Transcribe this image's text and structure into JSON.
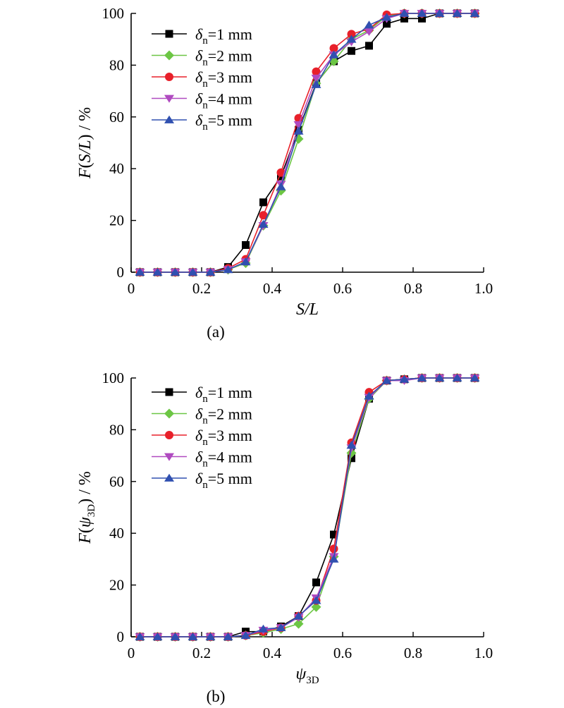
{
  "chart_data": [
    {
      "type": "line",
      "panel_label": "(a)",
      "xlabel": {
        "pre": "",
        "italic": "S/L",
        "post": ""
      },
      "ylabel": {
        "pre": "",
        "italic": "F",
        "mid": "(",
        "italic2": "S/L",
        "post": ") / %"
      },
      "xlim": [
        0,
        1.0
      ],
      "ylim": [
        0,
        100
      ],
      "xticks": [
        0,
        0.2,
        0.4,
        0.6,
        0.8,
        1.0
      ],
      "xtick_labels": [
        "0",
        "0.2",
        "0.4",
        "0.6",
        "0.8",
        "1.0"
      ],
      "yticks": [
        0,
        20,
        40,
        60,
        80,
        100
      ],
      "ytick_labels": [
        "0",
        "20",
        "40",
        "60",
        "80",
        "100"
      ],
      "legend_position": "top-left",
      "x": [
        0.025,
        0.075,
        0.125,
        0.175,
        0.225,
        0.275,
        0.325,
        0.375,
        0.425,
        0.475,
        0.525,
        0.575,
        0.625,
        0.675,
        0.725,
        0.775,
        0.825,
        0.875,
        0.925,
        0.975
      ],
      "series": [
        {
          "name": "=1 mm",
          "symbol": "δ",
          "sub": "n",
          "color": "#000000",
          "marker": "square",
          "values": [
            0,
            0,
            0,
            0,
            0,
            2,
            10.5,
            27,
            37,
            55,
            73,
            81.5,
            85.5,
            87.5,
            96,
            98,
            98,
            100,
            100,
            100
          ]
        },
        {
          "name": "=2 mm",
          "symbol": "δ",
          "sub": "n",
          "color": "#6cc644",
          "marker": "diamond",
          "values": [
            0,
            0,
            0,
            0,
            0,
            1,
            3.5,
            18,
            31.5,
            51.5,
            73,
            81.5,
            90,
            93.5,
            99,
            100,
            100,
            100,
            100,
            100
          ]
        },
        {
          "name": "=3 mm",
          "symbol": "δ",
          "sub": "n",
          "color": "#e8202a",
          "marker": "circle",
          "values": [
            0,
            0,
            0,
            0,
            0,
            1.5,
            5,
            22,
            38.5,
            59.5,
            77.5,
            86.5,
            92,
            94,
            99.5,
            100,
            100,
            100,
            100,
            100
          ]
        },
        {
          "name": "=4 mm",
          "symbol": "δ",
          "sub": "n",
          "color": "#b04ac0",
          "marker": "triangle-down",
          "values": [
            0,
            0,
            0,
            0,
            0,
            1,
            4,
            18,
            34,
            57,
            75,
            84,
            89,
            93,
            98,
            100,
            100,
            100,
            100,
            100
          ]
        },
        {
          "name": "=5 mm",
          "symbol": "δ",
          "sub": "n",
          "color": "#3050b0",
          "marker": "triangle-up",
          "values": [
            0,
            0,
            0,
            0,
            0,
            1,
            4,
            18.5,
            33,
            54.5,
            72.5,
            84,
            90,
            95.5,
            98.5,
            100,
            100,
            100,
            100,
            100
          ]
        }
      ]
    },
    {
      "type": "line",
      "panel_label": "(b)",
      "xlabel": {
        "pre": "",
        "italic": "ψ",
        "sub": "3D",
        "post": ""
      },
      "ylabel": {
        "pre": "",
        "italic": "F",
        "mid": "(",
        "italic2": "ψ",
        "sub": "3D",
        "post": ") / %"
      },
      "xlim": [
        0,
        1.0
      ],
      "ylim": [
        0,
        100
      ],
      "xticks": [
        0,
        0.2,
        0.4,
        0.6,
        0.8,
        1.0
      ],
      "xtick_labels": [
        "0",
        "0.2",
        "0.4",
        "0.6",
        "0.8",
        "1.0"
      ],
      "yticks": [
        0,
        20,
        40,
        60,
        80,
        100
      ],
      "ytick_labels": [
        "0",
        "20",
        "40",
        "60",
        "80",
        "100"
      ],
      "legend_position": "top-left",
      "x": [
        0.025,
        0.075,
        0.125,
        0.175,
        0.225,
        0.275,
        0.325,
        0.375,
        0.425,
        0.475,
        0.525,
        0.575,
        0.625,
        0.675,
        0.725,
        0.775,
        0.825,
        0.875,
        0.925,
        0.975
      ],
      "series": [
        {
          "name": "=1 mm",
          "symbol": "δ",
          "sub": "n",
          "color": "#000000",
          "marker": "square",
          "values": [
            0,
            0,
            0,
            0,
            0,
            0,
            2,
            2,
            4,
            8,
            21,
            39.5,
            69,
            92,
            99,
            99.5,
            100,
            100,
            100,
            100
          ]
        },
        {
          "name": "=2 mm",
          "symbol": "δ",
          "sub": "n",
          "color": "#6cc644",
          "marker": "diamond",
          "values": [
            0,
            0,
            0,
            0,
            0,
            0,
            0.5,
            1.5,
            3,
            5,
            11.5,
            31,
            71,
            92,
            99,
            99.5,
            100,
            100,
            100,
            100
          ]
        },
        {
          "name": "=3 mm",
          "symbol": "δ",
          "sub": "n",
          "color": "#e8202a",
          "marker": "circle",
          "values": [
            0,
            0,
            0,
            0,
            0,
            0,
            0.5,
            2,
            3.5,
            8,
            14,
            34,
            75,
            94.5,
            99,
            99.5,
            100,
            100,
            100,
            100
          ]
        },
        {
          "name": "=4 mm",
          "symbol": "δ",
          "sub": "n",
          "color": "#b04ac0",
          "marker": "triangle-down",
          "values": [
            0,
            0,
            0,
            0,
            0,
            0,
            0.5,
            2.5,
            3.5,
            7.5,
            15,
            31,
            73,
            92.5,
            99,
            99,
            100,
            100,
            100,
            100
          ]
        },
        {
          "name": "=5 mm",
          "symbol": "δ",
          "sub": "n",
          "color": "#3050b0",
          "marker": "triangle-up",
          "values": [
            0,
            0,
            0,
            0,
            0,
            0,
            0.5,
            3,
            3.5,
            8,
            14,
            30,
            74,
            93,
            99,
            99.5,
            100,
            100,
            100,
            100
          ]
        }
      ]
    }
  ]
}
